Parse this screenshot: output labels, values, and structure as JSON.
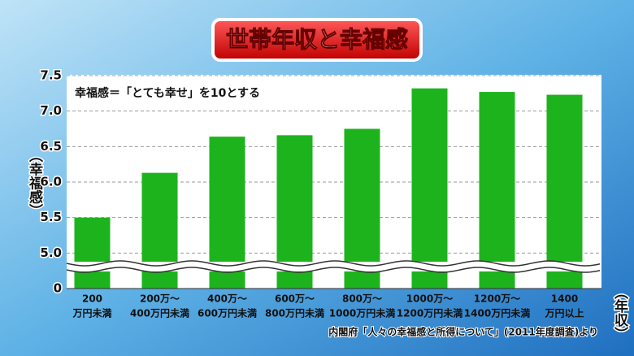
{
  "chart_data": {
    "type": "bar",
    "title": "世帯年収と幸福感",
    "annotation": "幸福感＝「とても幸せ」を10とする",
    "y_label": "（幸福感）",
    "x_label": "（年収）",
    "source": "内閣府「人々の幸福感と所得について」(2011年度調査)より",
    "categories": [
      [
        "200",
        "万円未満"
      ],
      [
        "200万～",
        "400万円未満"
      ],
      [
        "400万～",
        "600万円未満"
      ],
      [
        "600万～",
        "800万円未満"
      ],
      [
        "800万～",
        "1000万円未満"
      ],
      [
        "1000万～",
        "1200万円未満"
      ],
      [
        "1200万～",
        "1400万円未満"
      ],
      [
        "1400",
        "万円以上"
      ]
    ],
    "values": [
      5.5,
      6.13,
      6.64,
      6.66,
      6.75,
      7.32,
      7.27,
      7.23
    ],
    "color": "#1db31d",
    "ylim": [
      4.5,
      7.5
    ],
    "axis_break": true,
    "yticks": [
      0,
      {
        "value": 5,
        "label": "5.0"
      },
      {
        "value": 5.5,
        "label": "5.5"
      },
      {
        "value": 6,
        "label": "6.0"
      },
      {
        "value": 6.5,
        "label": "6.5"
      },
      {
        "value": 7,
        "label": "7.0"
      },
      {
        "value": 7.5,
        "label": "7.5"
      }
    ],
    "grid": true
  }
}
